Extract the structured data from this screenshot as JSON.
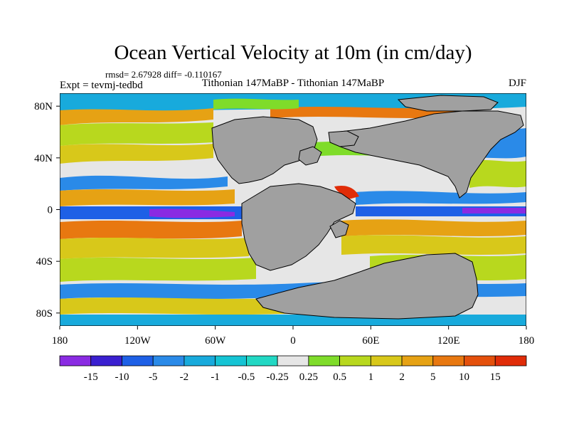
{
  "chart_data": {
    "type": "heatmap",
    "title": "Ocean Vertical Velocity at 10m (in cm/day)",
    "stats_text": "rmsd= 2.67928 diff= -0.110167",
    "experiment_text": "Expt = tevmj-tedbd",
    "comparison_text": "Tithonian 147MaBP - Tithonian 147MaBP",
    "season": "DJF",
    "x_ticks": [
      "180",
      "120W",
      "60W",
      "0",
      "60E",
      "120E",
      "180"
    ],
    "y_ticks": [
      "80N",
      "40N",
      "0",
      "40S",
      "80S"
    ],
    "lon_range": [
      -180,
      180
    ],
    "lat_range": [
      -90,
      90
    ],
    "colorbar": {
      "labels": [
        "-15",
        "-10",
        "-5",
        "-2",
        "-1",
        "-0.5",
        "-0.25",
        "0.25",
        "0.5",
        "1",
        "2",
        "5",
        "10",
        "15"
      ],
      "colors": [
        "#8a2be2",
        "#3a1fd0",
        "#1e60e6",
        "#2a8ae8",
        "#18aadc",
        "#15c4d4",
        "#22d8c4",
        "#e6e6e6",
        "#7fdc2a",
        "#b8d81e",
        "#d8c81a",
        "#e6a214",
        "#e87810",
        "#e4500c",
        "#e02c08"
      ]
    }
  }
}
